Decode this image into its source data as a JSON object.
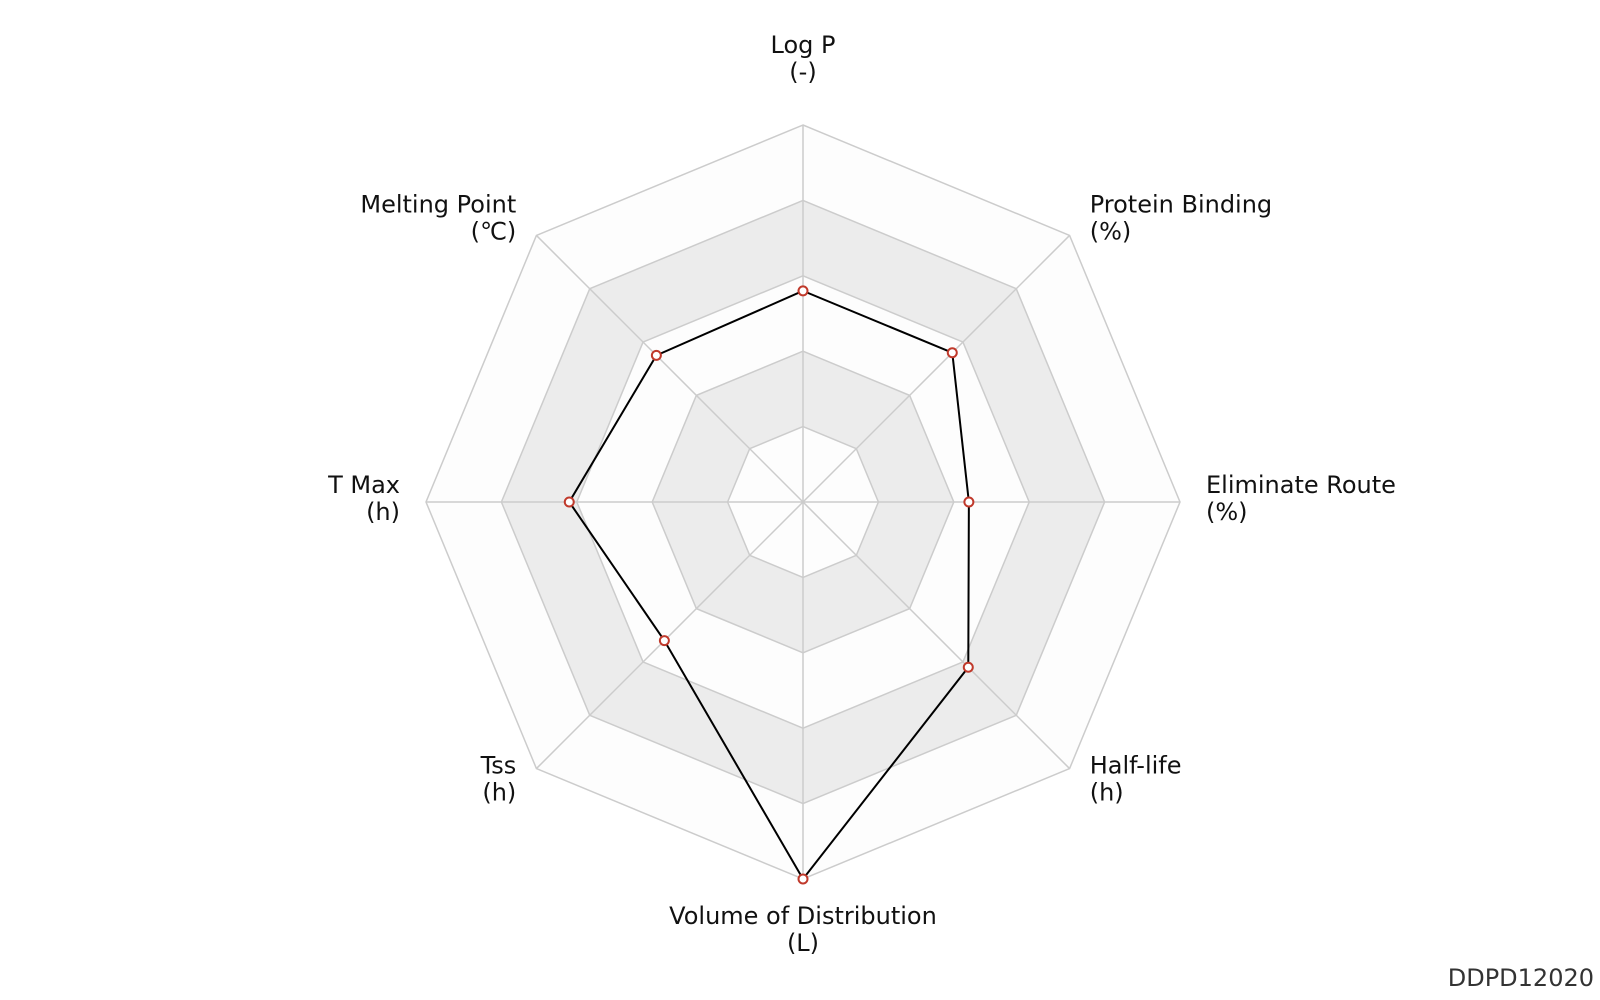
{
  "chart_data": {
    "type": "radar",
    "axes": [
      {
        "name": "Log P",
        "unit": "(-)"
      },
      {
        "name": "Protein Binding",
        "unit": "(%)"
      },
      {
        "name": "Eliminate Route",
        "unit": "(%)"
      },
      {
        "name": "Half-life",
        "unit": "(h)"
      },
      {
        "name": "Volume of Distribution",
        "unit": "(L)"
      },
      {
        "name": "Tss",
        "unit": "(h)"
      },
      {
        "name": "T Max",
        "unit": "(h)"
      },
      {
        "name": "Melting Point",
        "unit": "(℃)"
      }
    ],
    "series": [
      {
        "values": [
          0.56,
          0.56,
          0.44,
          0.62,
          1.0,
          0.52,
          0.62,
          0.55
        ]
      }
    ],
    "rlim": [
      0,
      1
    ],
    "rings": 5,
    "grid": true,
    "colors": {
      "band_light": "#fdfdfd",
      "band_dark": "#ececec",
      "grid_line": "#cccccc",
      "series_line": "#000000",
      "marker_stroke": "#c0392b",
      "marker_fill": "#ffffff"
    }
  },
  "footer": {
    "id": "DDPD12020"
  }
}
